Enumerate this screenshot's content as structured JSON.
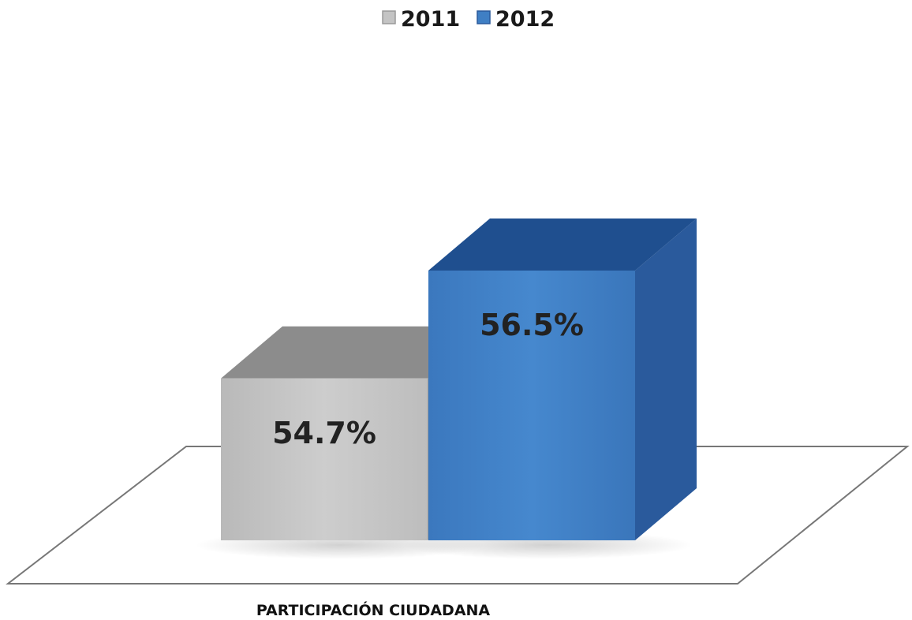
{
  "chart_data": {
    "type": "bar",
    "categories": [
      "PARTICIPACIÓN CIUDADANA"
    ],
    "series": [
      {
        "name": "2011",
        "values": [
          54.7
        ],
        "value_labels": [
          "54.7%"
        ],
        "color": "#c4c4c4",
        "side_color": "#9a9a9a",
        "top_color": "#8c8c8c"
      },
      {
        "name": "2012",
        "values": [
          56.5
        ],
        "value_labels": [
          "56.5%"
        ],
        "color": "#3f7fc4",
        "side_color": "#2a5a9c",
        "top_color": "#1f4f8f"
      }
    ],
    "legend": {
      "position": "top-center"
    },
    "grid": false,
    "three_d": true,
    "ylim": [
      52,
      57
    ]
  }
}
